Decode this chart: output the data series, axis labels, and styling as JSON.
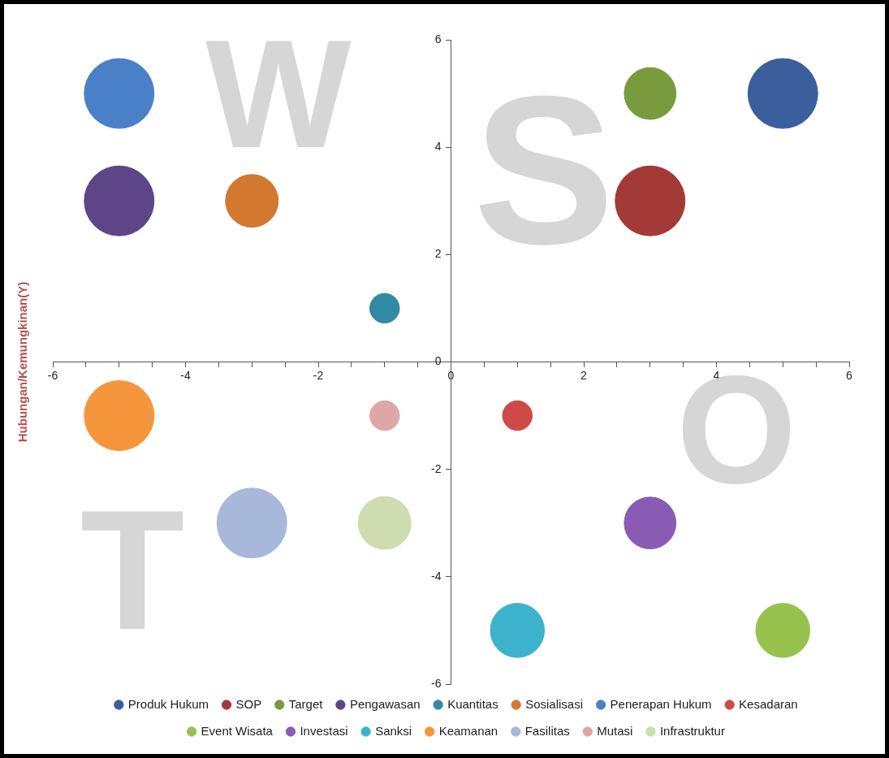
{
  "chart_data": {
    "type": "bubble",
    "ylabel": "Hubungan/Kemungkinan(Y)",
    "xlim": [
      -6,
      6
    ],
    "xticks": [
      -6,
      {
        "value": -5.5,
        "label": null
      },
      {
        "value": -5,
        "label": null
      },
      {
        "value": -4.5,
        "label": null
      },
      -4,
      {
        "value": -3.5,
        "label": null
      },
      {
        "value": -3,
        "label": null
      },
      {
        "value": -2.5,
        "label": null
      },
      -2,
      {
        "value": -1.5,
        "label": null
      },
      {
        "value": -1,
        "label": null
      },
      {
        "value": -0.5,
        "label": null
      },
      0,
      {
        "value": 0.5,
        "label": null
      },
      {
        "value": 1,
        "label": null
      },
      {
        "value": 1.5,
        "label": null
      },
      2,
      {
        "value": 2.5,
        "label": null
      },
      {
        "value": 3,
        "label": null
      },
      {
        "value": 3.5,
        "label": null
      },
      4,
      {
        "value": 4.5,
        "label": null
      },
      {
        "value": 5,
        "label": null
      },
      {
        "value": 5.5,
        "label": null
      },
      6
    ],
    "ylim": [
      -6,
      6
    ],
    "yticks": [
      -6,
      -4,
      -2,
      0,
      2,
      4,
      6
    ],
    "grid": false,
    "legend": "bottom",
    "annotations": [
      "W",
      "S",
      "T",
      "O"
    ],
    "series": [
      {
        "name": "Produk Hukum",
        "color": "#3a5f9c",
        "x": [
          5
        ],
        "values": [
          5
        ],
        "sizes": [
          1
        ]
      },
      {
        "name": "SOP",
        "color": "#a33a38",
        "x": [
          3
        ],
        "values": [
          3
        ],
        "sizes": [
          1
        ]
      },
      {
        "name": "Target",
        "color": "#7a9a3e",
        "x": [
          3
        ],
        "values": [
          5
        ],
        "sizes": [
          0.55
        ]
      },
      {
        "name": "Pengawasan",
        "color": "#5e4588",
        "x": [
          -5
        ],
        "values": [
          3
        ],
        "sizes": [
          1
        ]
      },
      {
        "name": "Kuantitas",
        "color": "#2f8aa3",
        "x": [
          -1
        ],
        "values": [
          1
        ],
        "sizes": [
          0.18
        ]
      },
      {
        "name": "Sosialisasi",
        "color": "#d2782f",
        "x": [
          -3
        ],
        "values": [
          3
        ],
        "sizes": [
          0.57
        ]
      },
      {
        "name": "Penerapan Hukum",
        "color": "#4a80c8",
        "x": [
          -5
        ],
        "values": [
          5
        ],
        "sizes": [
          1
        ]
      },
      {
        "name": "Kesadaran",
        "color": "#cf4a47",
        "x": [
          1
        ],
        "values": [
          -1
        ],
        "sizes": [
          0.18
        ]
      },
      {
        "name": "Event Wisata",
        "color": "#98c24e",
        "x": [
          5
        ],
        "values": [
          -5
        ],
        "sizes": [
          0.6
        ]
      },
      {
        "name": "Investasi",
        "color": "#8a5bb5",
        "x": [
          3
        ],
        "values": [
          -3
        ],
        "sizes": [
          0.55
        ]
      },
      {
        "name": "Sanksi",
        "color": "#3db2cc",
        "x": [
          1
        ],
        "values": [
          -5
        ],
        "sizes": [
          0.6
        ]
      },
      {
        "name": "Keamanan",
        "color": "#f5963d",
        "x": [
          -5
        ],
        "values": [
          -1
        ],
        "sizes": [
          1
        ]
      },
      {
        "name": "Fasilitas",
        "color": "#a7b8da",
        "x": [
          -3
        ],
        "values": [
          -3
        ],
        "sizes": [
          1
        ]
      },
      {
        "name": "Mutasi",
        "color": "#dfa6a8",
        "x": [
          -1
        ],
        "values": [
          -1
        ],
        "sizes": [
          0.18
        ]
      },
      {
        "name": "Infrastruktur",
        "color": "#cfdcb0",
        "x": [
          -1
        ],
        "values": [
          -3
        ],
        "sizes": [
          0.57
        ]
      }
    ]
  }
}
